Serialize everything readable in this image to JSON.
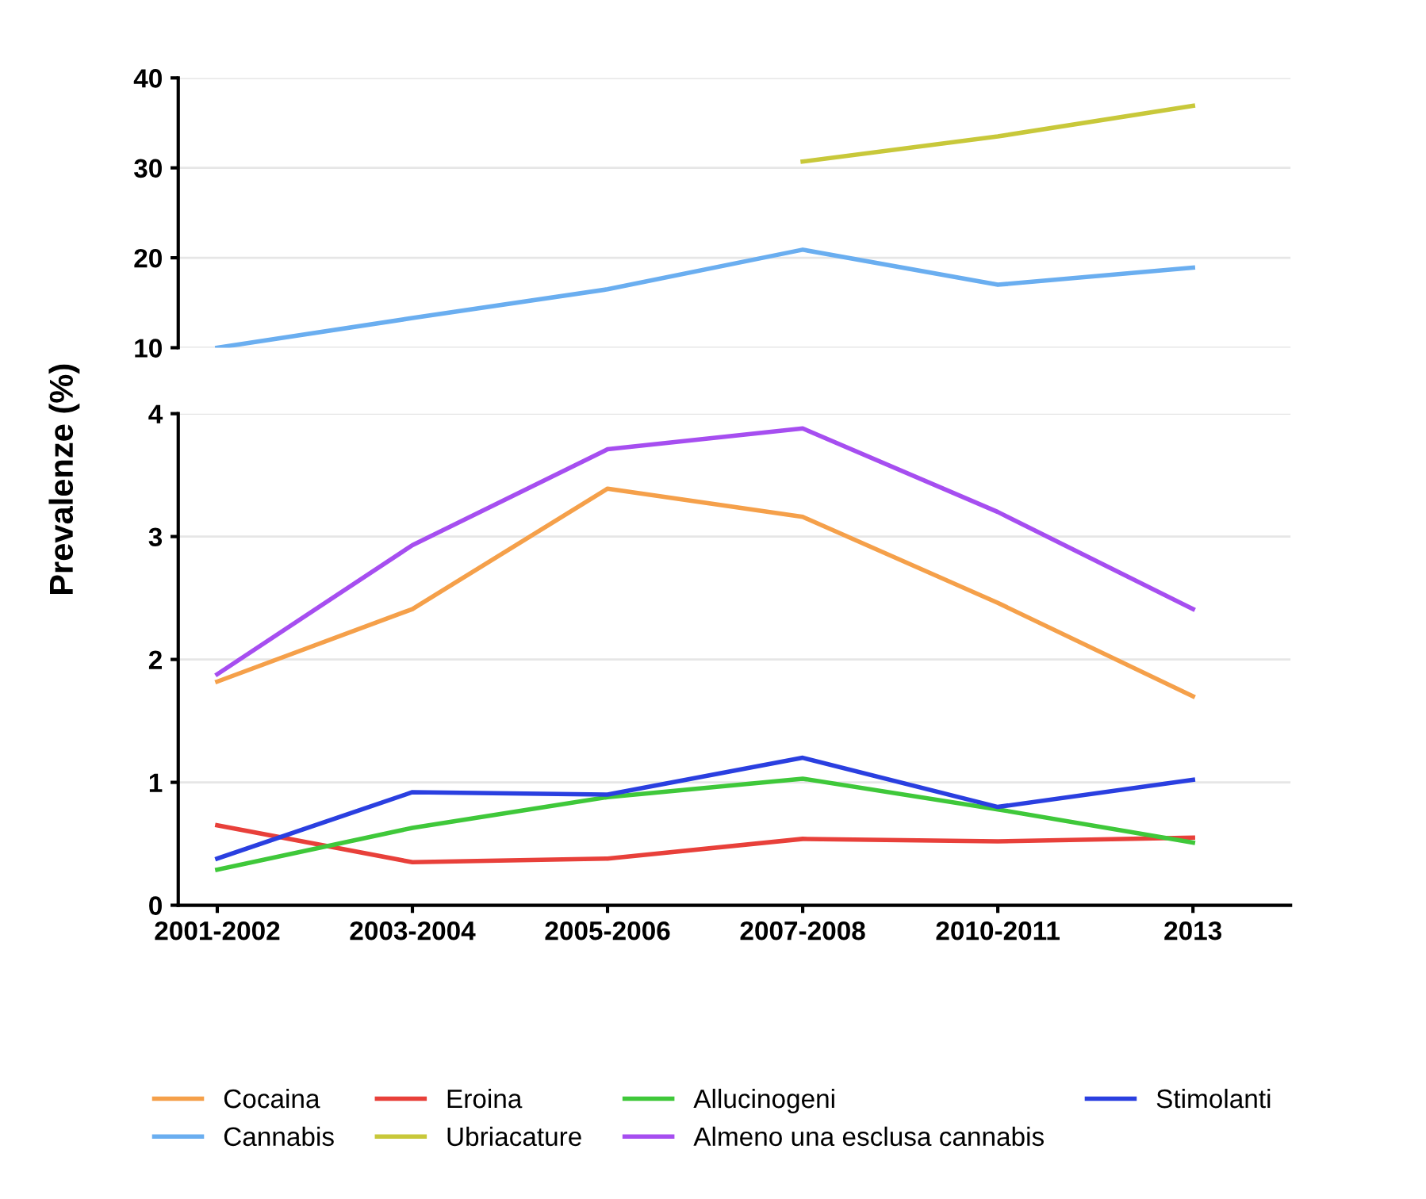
{
  "chart_data": [
    {
      "type": "line",
      "ylim": [
        10,
        40
      ],
      "yticks": [
        10,
        20,
        30,
        40
      ],
      "grid": "y",
      "tick_labels": "y",
      "legend": "bottom",
      "series": [
        {
          "name": "Cannabis",
          "color": "#6aaef0",
          "values": [
            10,
            13.3,
            16.5,
            20.9,
            17.0,
            18.9
          ]
        },
        {
          "name": "Ubriacature",
          "color": "#c8c83a",
          "values": [
            null,
            null,
            null,
            30.7,
            33.5,
            36.9
          ]
        }
      ]
    },
    {
      "type": "line",
      "categories": [
        "2001-2002",
        "2003-2004",
        "2005-2006",
        "2007-2008",
        "2010-2011",
        "2013"
      ],
      "ylim": [
        0,
        4
      ],
      "yticks": [
        0,
        1,
        2,
        3,
        4
      ],
      "grid": "y",
      "ylabel": "Prevalenze (%)",
      "legend": "bottom",
      "series": [
        {
          "name": "Cocaina",
          "color": "#f5a04a",
          "values": [
            1.82,
            2.41,
            3.39,
            3.16,
            2.46,
            1.7
          ]
        },
        {
          "name": "Eroina",
          "color": "#e8403a",
          "values": [
            0.65,
            0.35,
            0.38,
            0.54,
            0.52,
            0.55
          ]
        },
        {
          "name": "Allucinogeni",
          "color": "#3fc83a",
          "values": [
            0.29,
            0.63,
            0.88,
            1.03,
            0.78,
            0.51
          ]
        },
        {
          "name": "Stimolanti",
          "color": "#2a3fe0",
          "values": [
            0.38,
            0.92,
            0.9,
            1.2,
            0.8,
            1.02
          ]
        },
        {
          "name": "Almeno una esclusa cannabis",
          "color": "#a64ef0",
          "values": [
            1.88,
            2.93,
            3.71,
            3.88,
            3.2,
            2.41
          ]
        }
      ]
    }
  ]
}
